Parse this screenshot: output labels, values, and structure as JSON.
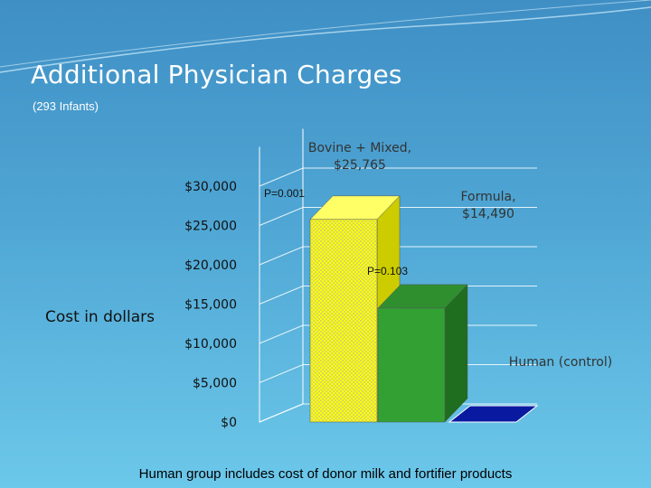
{
  "slide": {
    "title": "Additional Physician Charges",
    "subtitle": "(293 Infants)",
    "footnote": "Human group includes cost of donor milk and fortifier products"
  },
  "chart_data": {
    "type": "bar",
    "ylabel": "Cost in dollars",
    "ylim": [
      0,
      35000
    ],
    "yticks": [
      0,
      5000,
      10000,
      15000,
      20000,
      25000,
      30000
    ],
    "ytick_labels": [
      "$0",
      "$5,000",
      "$10,000",
      "$15,000",
      "$20,000",
      "$25,000",
      "$30,000"
    ],
    "categories": [
      "Bovine + Mixed",
      "Formula",
      "Human (control)"
    ],
    "values": [
      25765,
      14490,
      0
    ],
    "category_labels": [
      "Bovine + Mixed,\n$25,765",
      "Formula,\n$14,490",
      "Human (control)"
    ],
    "annotations": [
      "P=0.001",
      "P=0.103"
    ],
    "colors": [
      "#ffff00",
      "#33a033",
      "#0a1aa0"
    ],
    "grid": true,
    "legend": "none"
  }
}
